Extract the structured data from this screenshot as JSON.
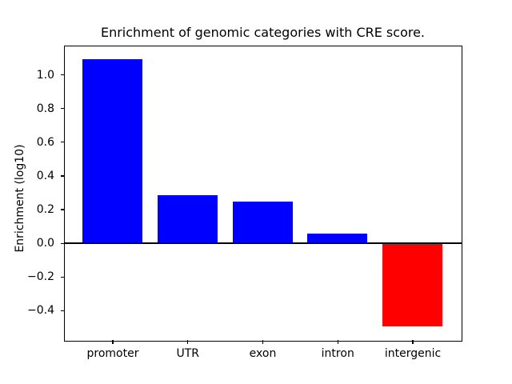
{
  "figure": {
    "title": "Enrichment of genomic categories with CRE score.",
    "ylabel": "Enrichment (log10)",
    "background": "#ffffff"
  },
  "chart_data": {
    "type": "bar",
    "title": "Enrichment of genomic categories with CRE score.",
    "xlabel": "",
    "ylabel": "Enrichment (log10)",
    "categories": [
      "promoter",
      "UTR",
      "exon",
      "intron",
      "intergenic"
    ],
    "values": [
      1.09,
      0.285,
      0.245,
      0.055,
      -0.495
    ],
    "bar_colors": [
      "#0000ff",
      "#0000ff",
      "#0000ff",
      "#0000ff",
      "#ff0000"
    ],
    "positive_color": "#0000ff",
    "negative_color": "#ff0000",
    "bar_width": 0.8,
    "xlim": [
      -0.64,
      4.64
    ],
    "ylim": [
      -0.574,
      1.169
    ],
    "yticks": [
      1.0,
      0.8,
      0.6,
      0.4,
      0.2,
      0.0,
      -0.2,
      -0.4
    ],
    "ytick_labels": [
      "1.0",
      "0.8",
      "0.6",
      "0.4",
      "0.2",
      "0.0",
      "−0.2",
      "−0.4"
    ],
    "grid": false,
    "legend": null,
    "zero_line": true,
    "axis_color": "#000000",
    "text_color": "#000000"
  }
}
